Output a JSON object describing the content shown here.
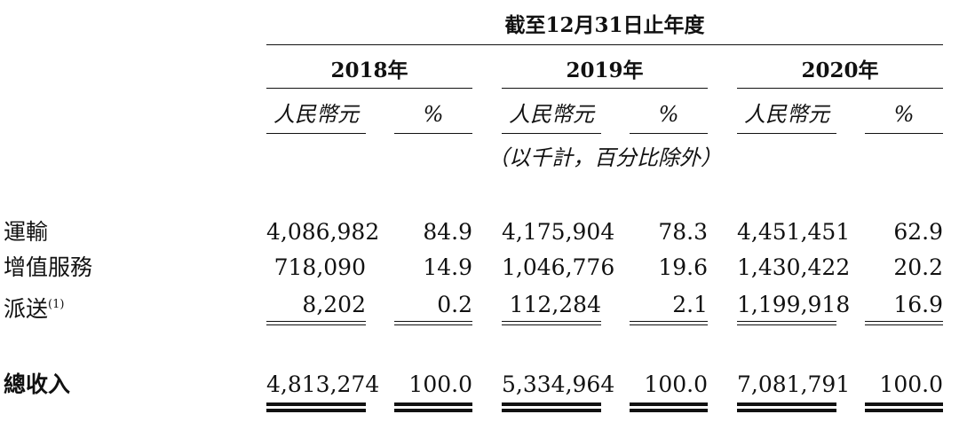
{
  "header": {
    "period": "截至12月31日止年度",
    "years": [
      "2018年",
      "2019年",
      "2020年"
    ],
    "col_rmb": "人民幣元",
    "col_pct": "%",
    "note": "（以千計，百分比除外）"
  },
  "rows": [
    {
      "label": "運輸",
      "sup": "",
      "v2018": "4,086,982",
      "p2018": "84.9",
      "v2019": "4,175,904",
      "p2019": "78.3",
      "v2020": "4,451,451",
      "p2020": "62.9"
    },
    {
      "label": "增值服務",
      "sup": "",
      "v2018": "718,090",
      "p2018": "14.9",
      "v2019": "1,046,776",
      "p2019": "19.6",
      "v2020": "1,430,422",
      "p2020": "20.2"
    },
    {
      "label": "派送",
      "sup": "(1)",
      "v2018": "8,202",
      "p2018": "0.2",
      "v2019": "112,284",
      "p2019": "2.1",
      "v2020": "1,199,918",
      "p2020": "16.9"
    }
  ],
  "total": {
    "label": "總收入",
    "v2018": "4,813,274",
    "p2018": "100.0",
    "v2019": "5,334,964",
    "p2019": "100.0",
    "v2020": "7,081,791",
    "p2020": "100.0"
  }
}
